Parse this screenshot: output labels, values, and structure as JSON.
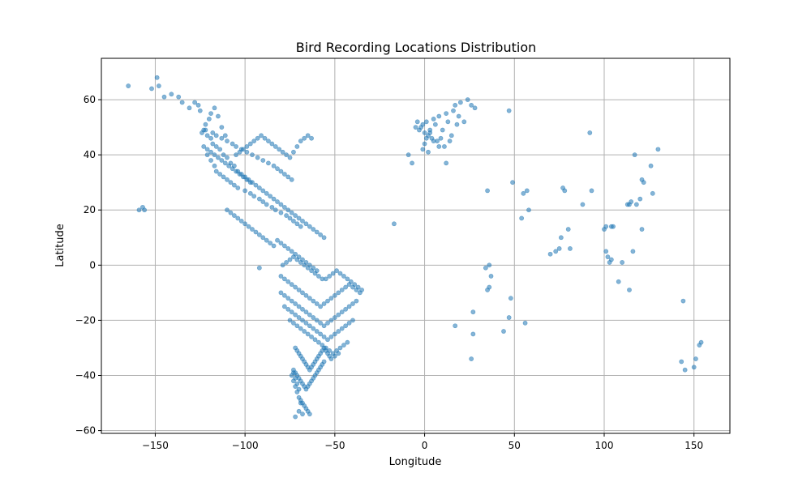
{
  "chart_data": {
    "type": "scatter",
    "title": "Bird Recording Locations Distribution",
    "xlabel": "Longitude",
    "ylabel": "Latitude",
    "xlim": [
      -180,
      170
    ],
    "ylim": [
      -61,
      75
    ],
    "xticks": [
      -150,
      -100,
      -50,
      0,
      50,
      100,
      150
    ],
    "yticks": [
      -60,
      -40,
      -20,
      0,
      20,
      40,
      60
    ],
    "grid": true,
    "point_color": "#1f77b4",
    "point_opacity": 0.55,
    "series": [
      {
        "x": [
          -165,
          -152,
          -149,
          -148,
          -145,
          -141,
          -137,
          -135,
          -131,
          -128,
          -126,
          -125,
          -123,
          -122,
          -120,
          -119,
          -117,
          -115,
          -113,
          -111,
          -124,
          -122,
          -121,
          -119,
          -118,
          -116,
          -114,
          -112,
          -110,
          -108,
          -106,
          -104,
          -102,
          -100,
          -98,
          -96,
          -94,
          -92,
          -90,
          -88,
          -86,
          -84,
          -82,
          -80,
          -78,
          -76,
          -74,
          -72,
          -70,
          -68,
          -66,
          -64,
          -62,
          -60,
          -58,
          -56,
          -121,
          -119,
          -117,
          -116,
          -114,
          -112,
          -110,
          -108,
          -106,
          -104,
          -100,
          -97,
          -95,
          -92,
          -90,
          -88,
          -85,
          -83,
          -80,
          -77,
          -75,
          -73,
          -71,
          -69,
          -123,
          -121,
          -119,
          -117,
          -115,
          -113,
          -111,
          -109,
          -107,
          -105,
          -103,
          -101,
          -99,
          -97,
          -118,
          -116,
          -113,
          -110,
          -107,
          -105,
          -102,
          -99,
          -96,
          -93,
          -90,
          -87,
          -84,
          -82,
          -80,
          -78,
          -76,
          -74,
          -105,
          -103,
          -101,
          -99,
          -97,
          -95,
          -93,
          -91,
          -89,
          -87,
          -85,
          -83,
          -81,
          -79,
          -77,
          -75,
          -73,
          -71,
          -69,
          -67,
          -65,
          -63,
          -110,
          -108,
          -106,
          -104,
          -102,
          -100,
          -98,
          -96,
          -94,
          -92,
          -90,
          -88,
          -86,
          -84,
          -82,
          -80,
          -78,
          -76,
          -74,
          -72,
          -70,
          -68,
          -66,
          -64,
          -62,
          -60,
          -79,
          -77,
          -75,
          -73,
          -71,
          -69,
          -67,
          -65,
          -63,
          -61,
          -59,
          -57,
          -55,
          -53,
          -51,
          -49,
          -47,
          -45,
          -43,
          -41,
          -39,
          -37,
          -35,
          -80,
          -78,
          -76,
          -74,
          -72,
          -70,
          -68,
          -66,
          -64,
          -62,
          -60,
          -58,
          -56,
          -54,
          -52,
          -50,
          -48,
          -46,
          -44,
          -42,
          -40,
          -38,
          -36,
          -80,
          -78,
          -76,
          -74,
          -72,
          -70,
          -68,
          -66,
          -64,
          -62,
          -60,
          -58,
          -56,
          -54,
          -52,
          -50,
          -48,
          -46,
          -44,
          -42,
          -40,
          -38,
          -78,
          -76,
          -74,
          -72,
          -70,
          -68,
          -66,
          -64,
          -62,
          -60,
          -58,
          -56,
          -54,
          -52,
          -50,
          -48,
          -46,
          -44,
          -42,
          -40,
          -75,
          -73,
          -71,
          -69,
          -67,
          -65,
          -63,
          -61,
          -59,
          -57,
          -55,
          -53,
          -51,
          -49,
          -47,
          -45,
          -43,
          -72,
          -71,
          -70,
          -69,
          -68,
          -67,
          -66,
          -65,
          -64,
          -63,
          -62,
          -61,
          -60,
          -59,
          -58,
          -57,
          -56,
          -55,
          -54,
          -53,
          -52,
          -50,
          -48,
          -73,
          -72,
          -71,
          -70,
          -69,
          -68,
          -67,
          -66,
          -65,
          -64,
          -63,
          -62,
          -61,
          -60,
          -59,
          -58,
          -57,
          -56,
          -74,
          -73,
          -72,
          -71,
          -70,
          -69,
          -68,
          -67,
          -66,
          -65,
          -64,
          -73,
          -72,
          -71,
          -70,
          -69,
          -68,
          -72,
          -70,
          -157,
          -156,
          -159,
          -92,
          -17,
          -9,
          -7,
          -5,
          -4,
          -3,
          -2,
          -1,
          0,
          1,
          2,
          3,
          4,
          5,
          6,
          7,
          8,
          9,
          10,
          11,
          12,
          13,
          14,
          15,
          16,
          17,
          18,
          19,
          20,
          22,
          24,
          26,
          28,
          12,
          8,
          5,
          2,
          -1,
          0,
          1,
          3,
          34,
          35,
          36,
          36,
          37,
          35,
          27,
          26,
          17,
          44,
          47,
          48,
          49,
          27,
          56,
          55,
          57,
          58,
          54,
          47,
          70,
          73,
          75,
          76,
          77,
          78,
          80,
          81,
          88,
          92,
          93,
          100,
          101,
          101,
          102,
          103,
          104,
          104,
          105,
          108,
          110,
          114,
          116,
          117,
          118,
          120,
          121,
          122,
          113,
          114,
          115,
          121,
          126,
          127,
          130,
          143,
          144,
          145,
          150,
          151,
          153,
          154
        ],
        "y": [
          65,
          64,
          68,
          65,
          61,
          62,
          61,
          59,
          57,
          59,
          58,
          56,
          49,
          51,
          53,
          55,
          57,
          54,
          50,
          47,
          48,
          49,
          47,
          46,
          44,
          43,
          42,
          40,
          39,
          37,
          36,
          34,
          33,
          32,
          31,
          30,
          29,
          28,
          27,
          26,
          25,
          24,
          23,
          22,
          21,
          20,
          19,
          18,
          17,
          16,
          15,
          14,
          13,
          12,
          11,
          10,
          40,
          38,
          36,
          34,
          33,
          32,
          31,
          30,
          29,
          28,
          27,
          26,
          25,
          24,
          23,
          22,
          21,
          20,
          19,
          18,
          17,
          16,
          15,
          14,
          43,
          42,
          41,
          40,
          39,
          38,
          37,
          36,
          35,
          34,
          33,
          32,
          31,
          30,
          48,
          47,
          46,
          45,
          44,
          43,
          42,
          41,
          40,
          39,
          38,
          37,
          36,
          35,
          34,
          33,
          32,
          31,
          40,
          41,
          42,
          43,
          44,
          45,
          46,
          47,
          46,
          45,
          44,
          43,
          42,
          41,
          40,
          39,
          41,
          43,
          45,
          46,
          47,
          46,
          20,
          19,
          18,
          17,
          16,
          15,
          14,
          13,
          12,
          11,
          10,
          9,
          8,
          7,
          9,
          8,
          7,
          6,
          5,
          4,
          3,
          2,
          1,
          0,
          -1,
          -2,
          0,
          1,
          2,
          3,
          2,
          1,
          0,
          -1,
          -2,
          -3,
          -4,
          -5,
          -5,
          -4,
          -3,
          -2,
          -3,
          -4,
          -5,
          -6,
          -7,
          -8,
          -9,
          -4,
          -5,
          -6,
          -7,
          -8,
          -9,
          -10,
          -11,
          -12,
          -13,
          -14,
          -15,
          -14,
          -13,
          -12,
          -11,
          -10,
          -9,
          -8,
          -7,
          -8,
          -9,
          -10,
          -10,
          -11,
          -12,
          -13,
          -14,
          -15,
          -16,
          -17,
          -18,
          -19,
          -20,
          -21,
          -22,
          -21,
          -20,
          -19,
          -18,
          -17,
          -16,
          -15,
          -14,
          -13,
          -15,
          -16,
          -17,
          -18,
          -19,
          -20,
          -21,
          -22,
          -23,
          -24,
          -25,
          -26,
          -27,
          -26,
          -25,
          -24,
          -23,
          -22,
          -21,
          -20,
          -20,
          -21,
          -22,
          -23,
          -24,
          -25,
          -26,
          -27,
          -28,
          -29,
          -30,
          -31,
          -32,
          -31,
          -30,
          -29,
          -28,
          -30,
          -31,
          -32,
          -33,
          -34,
          -35,
          -36,
          -37,
          -38,
          -37,
          -36,
          -35,
          -34,
          -33,
          -32,
          -31,
          -30,
          -31,
          -32,
          -33,
          -34,
          -33,
          -32,
          -38,
          -39,
          -40,
          -41,
          -42,
          -43,
          -44,
          -45,
          -44,
          -43,
          -42,
          -41,
          -40,
          -39,
          -38,
          -37,
          -36,
          -35,
          -40,
          -42,
          -44,
          -46,
          -48,
          -49,
          -50,
          -51,
          -52,
          -53,
          -54,
          -39,
          -41,
          -43,
          -45,
          -50,
          -54,
          -55,
          -53,
          21,
          20,
          20,
          -1,
          15,
          40,
          37,
          50,
          52,
          49,
          50,
          51,
          48,
          52,
          47,
          49,
          46,
          53,
          51,
          45,
          54,
          46,
          49,
          43,
          55,
          52,
          45,
          47,
          56,
          58,
          51,
          54,
          59,
          52,
          60,
          58,
          57,
          37,
          43,
          45,
          41,
          42,
          44,
          46,
          48,
          -1,
          27,
          0,
          -8,
          -4,
          -9,
          -17,
          -34,
          -22,
          -24,
          -19,
          -12,
          30,
          -25,
          -21,
          26,
          27,
          20,
          17,
          56,
          4,
          5,
          6,
          10,
          28,
          27,
          13,
          6,
          22,
          48,
          27,
          13,
          14,
          5,
          3,
          1,
          2,
          14,
          14,
          -6,
          1,
          -9,
          5,
          40,
          22,
          24,
          31,
          30,
          22,
          22,
          23,
          13,
          36,
          26,
          42,
          -35,
          -13,
          -38,
          -37,
          -34,
          -29,
          -28
        ]
      }
    ]
  }
}
